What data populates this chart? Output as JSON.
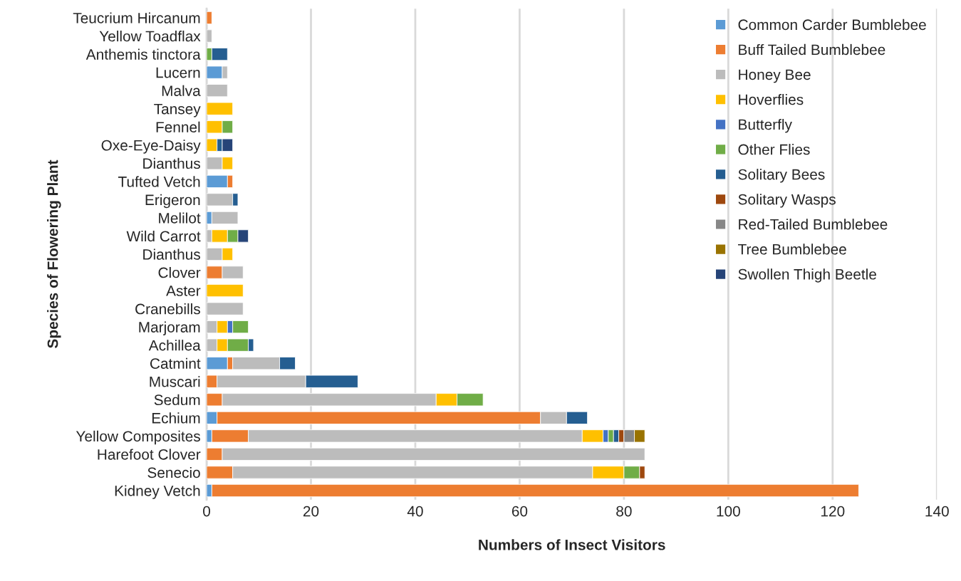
{
  "chart_data": {
    "type": "bar",
    "orientation": "horizontal",
    "stacked": true,
    "xlabel": "Numbers of Insect Visitors",
    "ylabel": "Species of Flowering Plant",
    "categories": [
      "Teucrium Hircanum",
      "Yellow Toadflax",
      "Anthemis tinctora",
      "Lucern",
      "Malva",
      "Tansey",
      "Fennel",
      "Oxe-Eye-Daisy",
      "Dianthus",
      "Tufted Vetch",
      "Erigeron",
      "Melilot",
      "Wild Carrot",
      "Dianthus",
      "Clover",
      "Aster",
      "Cranebills",
      "Marjoram",
      "Achillea",
      "Catmint",
      "Muscari",
      "Sedum",
      "Echium",
      "Yellow Composites",
      "Harefoot Clover",
      "Senecio",
      "Kidney Vetch"
    ],
    "series": [
      {
        "name": "Common Carder Bumblebee",
        "color": "#5b9bd5",
        "values": [
          null,
          null,
          null,
          3,
          null,
          null,
          null,
          null,
          null,
          4,
          null,
          1,
          null,
          null,
          null,
          null,
          null,
          null,
          null,
          4,
          null,
          null,
          2,
          1,
          null,
          null,
          1
        ]
      },
      {
        "name": "Buff Tailed Bumblebee",
        "color": "#ed7d31",
        "values": [
          1,
          null,
          null,
          null,
          null,
          null,
          null,
          null,
          null,
          1,
          null,
          null,
          null,
          null,
          3,
          null,
          null,
          null,
          null,
          1,
          2,
          3,
          62,
          7,
          3,
          5,
          124
        ]
      },
      {
        "name": "Honey Bee",
        "color": "#bcbcbc",
        "values": [
          null,
          1,
          null,
          1,
          4,
          null,
          null,
          null,
          3,
          null,
          5,
          5,
          1,
          3,
          4,
          null,
          7,
          2,
          2,
          9,
          17,
          41,
          5,
          64,
          81,
          69,
          null
        ]
      },
      {
        "name": "Hoverflies",
        "color": "#ffc000",
        "values": [
          null,
          null,
          null,
          null,
          null,
          5,
          3,
          2,
          2,
          null,
          null,
          null,
          3,
          2,
          null,
          7,
          null,
          2,
          2,
          null,
          null,
          4,
          null,
          4,
          null,
          6,
          null
        ]
      },
      {
        "name": "Butterfly",
        "color": "#4472c4",
        "values": [
          null,
          null,
          null,
          null,
          null,
          null,
          null,
          null,
          null,
          null,
          null,
          null,
          null,
          null,
          null,
          null,
          null,
          1,
          null,
          null,
          null,
          null,
          null,
          1,
          null,
          null,
          null
        ]
      },
      {
        "name": "Other Flies",
        "color": "#70ad47",
        "values": [
          null,
          null,
          1,
          null,
          null,
          null,
          2,
          null,
          null,
          null,
          null,
          null,
          2,
          null,
          null,
          null,
          null,
          3,
          4,
          null,
          null,
          5,
          null,
          1,
          null,
          3,
          null
        ]
      },
      {
        "name": "Solitary Bees",
        "color": "#255e91",
        "values": [
          null,
          null,
          3,
          null,
          null,
          null,
          null,
          1,
          null,
          null,
          1,
          null,
          null,
          null,
          null,
          null,
          null,
          null,
          1,
          3,
          10,
          null,
          4,
          1,
          null,
          null,
          null
        ]
      },
      {
        "name": "Solitary Wasps",
        "color": "#9e480e",
        "values": [
          null,
          null,
          null,
          null,
          null,
          null,
          null,
          null,
          null,
          null,
          null,
          null,
          null,
          null,
          null,
          null,
          null,
          null,
          null,
          null,
          null,
          null,
          null,
          1,
          null,
          1,
          null
        ]
      },
      {
        "name": "Red-Tailed Bumblebee",
        "color": "#878787",
        "values": [
          null,
          null,
          null,
          null,
          null,
          null,
          null,
          null,
          null,
          null,
          null,
          null,
          null,
          null,
          null,
          null,
          null,
          null,
          null,
          null,
          null,
          null,
          null,
          2,
          null,
          null,
          null
        ]
      },
      {
        "name": "Tree Bumblebee",
        "color": "#997300",
        "values": [
          null,
          null,
          null,
          null,
          null,
          null,
          null,
          null,
          null,
          null,
          null,
          null,
          null,
          null,
          null,
          null,
          null,
          null,
          null,
          null,
          null,
          null,
          null,
          2,
          null,
          null,
          null
        ]
      },
      {
        "name": "Swollen Thigh Beetle",
        "color": "#264478",
        "values": [
          null,
          null,
          null,
          null,
          null,
          null,
          null,
          2,
          null,
          null,
          null,
          null,
          2,
          null,
          null,
          null,
          null,
          null,
          null,
          null,
          null,
          null,
          null,
          null,
          null,
          null,
          null
        ]
      }
    ],
    "xlim": [
      0,
      140
    ],
    "xticks": [
      0,
      20,
      40,
      60,
      80,
      100,
      120,
      140
    ],
    "grid": "x",
    "legend": "top right"
  }
}
